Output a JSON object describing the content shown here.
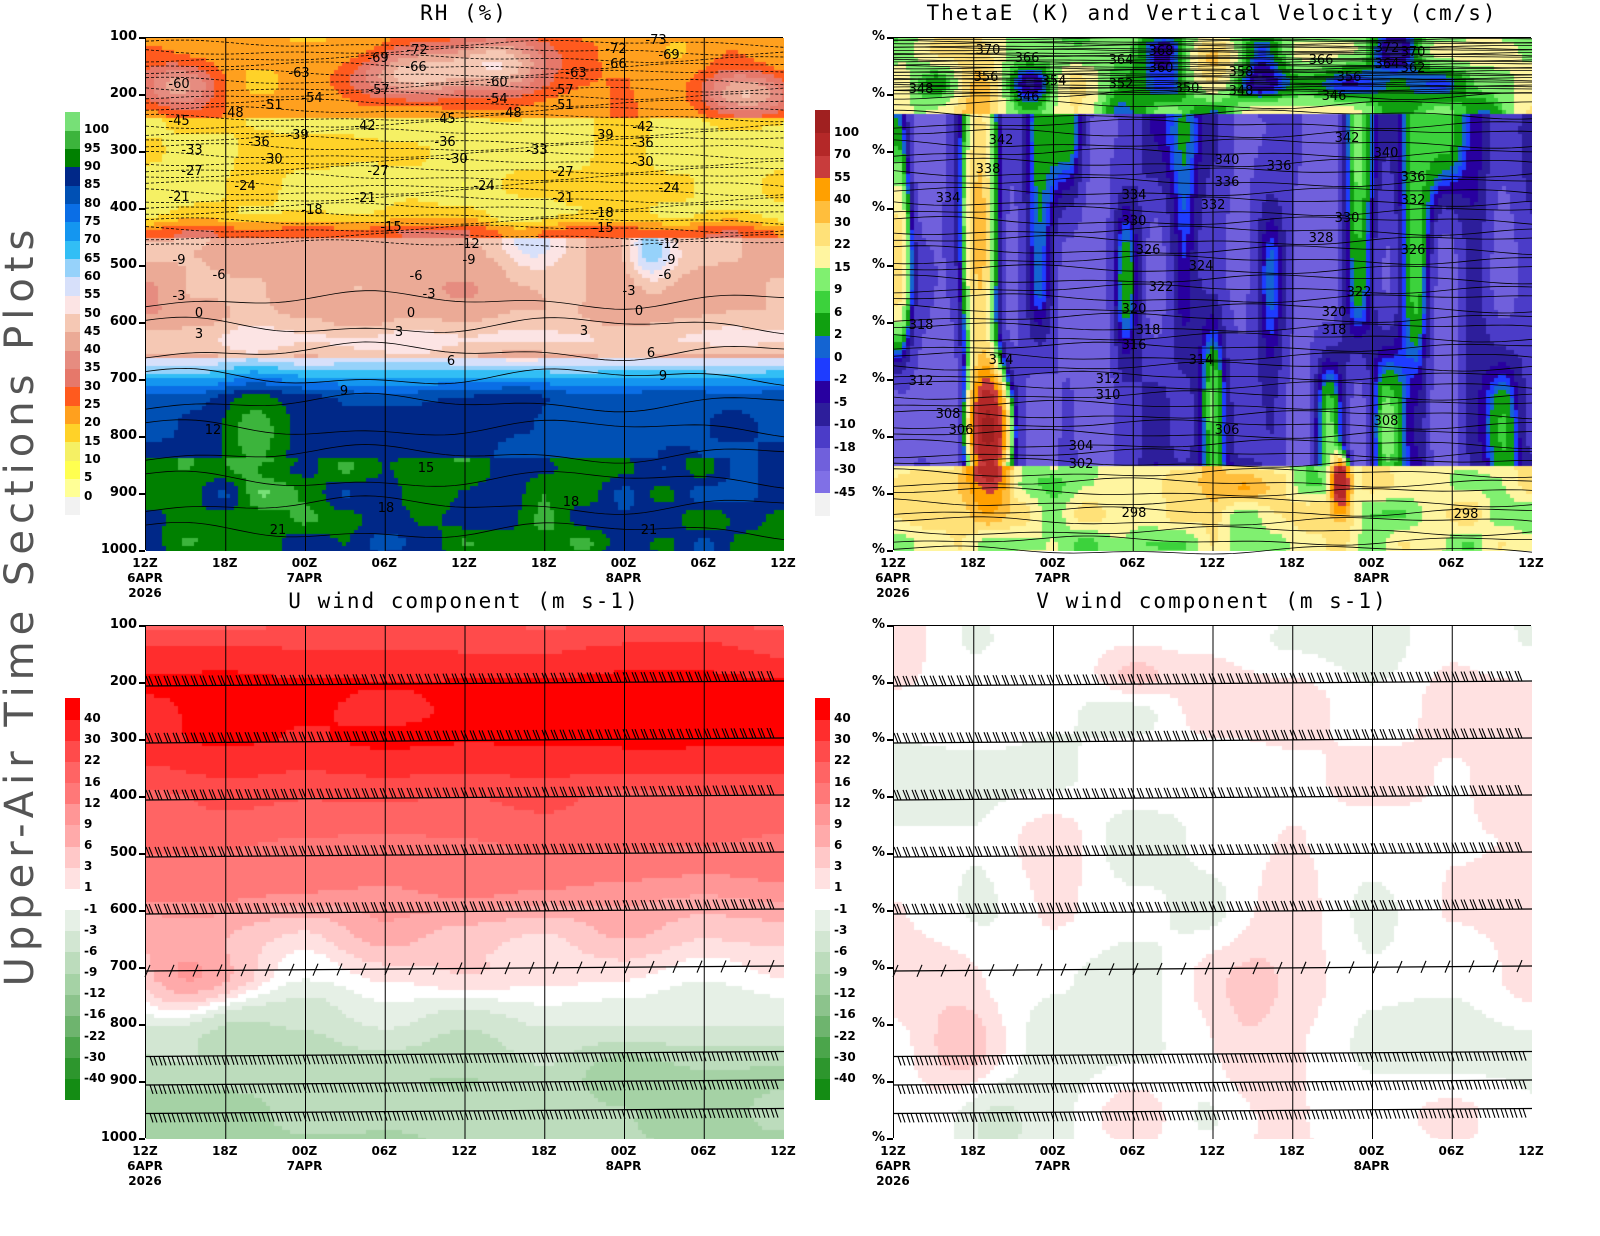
{
  "side_title": "Upper-Air Time Sections Plots",
  "x_ticks": [
    {
      "time": "12Z",
      "date": "6APR",
      "year": "2026"
    },
    {
      "time": "18Z",
      "date": "",
      "year": ""
    },
    {
      "time": "00Z",
      "date": "7APR",
      "year": ""
    },
    {
      "time": "06Z",
      "date": "",
      "year": ""
    },
    {
      "time": "12Z",
      "date": "",
      "year": ""
    },
    {
      "time": "18Z",
      "date": "",
      "year": ""
    },
    {
      "time": "00Z",
      "date": "8APR",
      "year": ""
    },
    {
      "time": "06Z",
      "date": "",
      "year": ""
    },
    {
      "time": "12Z",
      "date": "",
      "year": ""
    }
  ],
  "chart_data": [
    {
      "type": "heatmap",
      "title": "RH (%)",
      "y_ticks": [
        "100",
        "200",
        "300",
        "400",
        "500",
        "600",
        "700",
        "800",
        "900",
        "1000"
      ],
      "y_scale": "pressure, reversed (100 top, 1000 bottom)",
      "colorbar": {
        "levels": [
          0,
          5,
          10,
          15,
          20,
          25,
          30,
          35,
          40,
          45,
          50,
          55,
          60,
          65,
          70,
          75,
          80,
          85,
          90,
          95,
          100
        ],
        "colors": [
          "#f2f2f2",
          "#ffff96",
          "#ffff50",
          "#f5f064",
          "#ffd228",
          "#ffa01e",
          "#ff5a1e",
          "#e6786a",
          "#e68c80",
          "#ebaa96",
          "#f5c8b4",
          "#fce4e4",
          "#d7e0fa",
          "#96d2fa",
          "#32bef5",
          "#1496f0",
          "#0a6ee6",
          "#0050b4",
          "#002888",
          "#008000",
          "#3cb43c",
          "#77e077"
        ]
      },
      "contour_labels": [
        "-60",
        "-48",
        "-51",
        "-54",
        "-63",
        "-69",
        "-72",
        "-66",
        "-57",
        "-45",
        "-33",
        "-36",
        "-30",
        "-39",
        "-42",
        "-45",
        "-36",
        "-30",
        "-27",
        "-24",
        "-21",
        "-27",
        "-21",
        "-18",
        "-15",
        "-24",
        "-60",
        "-54",
        "-48",
        "-57",
        "-51",
        "-63",
        "-33",
        "-27",
        "-21",
        "-39",
        "-42",
        "-36",
        "-30",
        "-24",
        "-18",
        "-15",
        "-72",
        "-66",
        "-69",
        "-12",
        "-9",
        "-12",
        "-9",
        "-6",
        "-9",
        "-6",
        "-3",
        "0",
        "3",
        "-6",
        "-3",
        "0",
        "3",
        "6",
        "9",
        "12",
        "15",
        "18",
        "21",
        "18",
        "21",
        "3",
        "6",
        "9",
        "-3",
        "0",
        "-73"
      ]
    },
    {
      "type": "heatmap",
      "title": "ThetaE (K) and Vertical Velocity (cm/s)",
      "y_ticks": [
        "%",
        "%",
        "%",
        "%",
        "%",
        "%",
        "%",
        "%",
        "%",
        "%"
      ],
      "colorbar": {
        "levels": [
          -45,
          -30,
          -18,
          -10,
          -5,
          -2,
          0,
          2,
          6,
          9,
          15,
          22,
          30,
          40,
          55,
          70,
          100
        ],
        "colors": [
          "#f2f2f2",
          "#8070e6",
          "#7060dc",
          "#4b3cc8",
          "#2d1e9b",
          "#2800a0",
          "#1e3cff",
          "#1464d2",
          "#10a010",
          "#3cd23c",
          "#80f070",
          "#fff5a0",
          "#ffe178",
          "#ffbe3c",
          "#ffa000",
          "#c83c3c",
          "#b42828",
          "#a02020"
        ]
      },
      "contour_labels": [
        "370",
        "366",
        "356",
        "354",
        "346",
        "348",
        "364",
        "368",
        "360",
        "352",
        "350",
        "358",
        "348",
        "366",
        "356",
        "346",
        "372",
        "364",
        "370",
        "362",
        "342",
        "338",
        "334",
        "342",
        "340",
        "340",
        "336",
        "336",
        "332",
        "334",
        "330",
        "326",
        "324",
        "322",
        "320",
        "318",
        "316",
        "314",
        "314",
        "312",
        "312",
        "310",
        "308",
        "306",
        "306",
        "304",
        "302",
        "298",
        "298",
        "328",
        "330",
        "336",
        "332",
        "326",
        "322",
        "320",
        "318",
        "318",
        "308"
      ]
    },
    {
      "type": "heatmap",
      "title": "U wind component (m s-1)",
      "y_ticks": [
        "100",
        "200",
        "300",
        "400",
        "500",
        "600",
        "700",
        "800",
        "900",
        "1000"
      ],
      "colorbar": {
        "levels": [
          -40,
          -30,
          -22,
          -16,
          -12,
          -9,
          -6,
          -3,
          -1,
          1,
          3,
          6,
          9,
          12,
          16,
          22,
          30,
          40
        ],
        "colors": [
          "#148c14",
          "#2d962d",
          "#4ba54b",
          "#6eb46e",
          "#8cc38c",
          "#a5d2a5",
          "#bcdcbc",
          "#d2e6d2",
          "#e6f0e6",
          "#ffffff",
          "#ffe1e1",
          "#ffc8c8",
          "#ffaaaa",
          "#ff9696",
          "#ff7878",
          "#ff6464",
          "#ff4b4b",
          "#ff2d2d",
          "#ff0000"
        ]
      },
      "wind_barb_levels": [
        200,
        300,
        400,
        500,
        600,
        700,
        850,
        900,
        950
      ]
    },
    {
      "type": "heatmap",
      "title": "V wind component (m s-1)",
      "y_ticks": [
        "%",
        "%",
        "%",
        "%",
        "%",
        "%",
        "%",
        "%",
        "%",
        "%"
      ],
      "colorbar": {
        "levels": [
          -40,
          -30,
          -22,
          -16,
          -12,
          -9,
          -6,
          -3,
          -1,
          1,
          3,
          6,
          9,
          12,
          16,
          22,
          30,
          40
        ],
        "colors": [
          "#148c14",
          "#2d962d",
          "#4ba54b",
          "#6eb46e",
          "#8cc38c",
          "#a5d2a5",
          "#bcdcbc",
          "#d2e6d2",
          "#e6f0e6",
          "#ffffff",
          "#ffe1e1",
          "#ffc8c8",
          "#ffaaaa",
          "#ff9696",
          "#ff7878",
          "#ff6464",
          "#ff4b4b",
          "#ff2d2d",
          "#ff0000"
        ]
      },
      "wind_barb_levels": [
        200,
        300,
        400,
        500,
        600,
        700,
        850,
        900,
        950
      ]
    }
  ]
}
